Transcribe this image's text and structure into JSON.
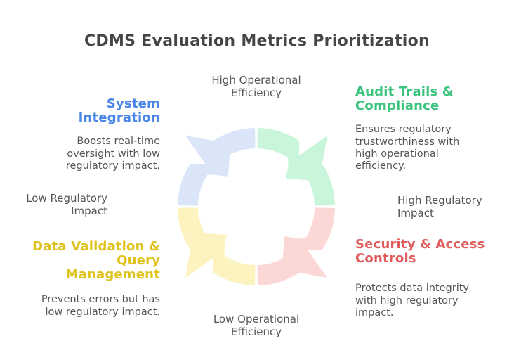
{
  "title": "CDMS Evaluation Metrics Prioritization",
  "colors": {
    "title": "#454545",
    "body_text": "#555555"
  },
  "quadrants": [
    {
      "id": "system-integration",
      "position": "top-left",
      "heading": "System\nIntegration",
      "body": "Boosts real-time\noversight with low\nregulatory impact.",
      "heading_color": "#4a86e8",
      "band_color": "#dbe5f8"
    },
    {
      "id": "audit-trails-compliance",
      "position": "top-right",
      "heading": "Audit Trails &\nCompliance",
      "body": "Ensures regulatory\ntrustworthiness with\nhigh operational\nefficiency.",
      "heading_color": "#3bc47e",
      "band_color": "#c9f6da"
    },
    {
      "id": "data-validation-query-management",
      "position": "bottom-left",
      "heading": "Data Validation &\nQuery\nManagement",
      "body": "Prevents errors but has\nlow regulatory impact.",
      "heading_color": "#dfc31c",
      "band_color": "#fdf3c0"
    },
    {
      "id": "security-access-controls",
      "position": "bottom-right",
      "heading": "Security & Access\nControls",
      "body": "Protects data integrity\nwith high regulatory\nimpact.",
      "heading_color": "#e05c5c",
      "band_color": "#fbd8d5"
    }
  ],
  "axis_labels": {
    "top": "High Operational\nEfficiency",
    "bottom": "Low Operational\nEfficiency",
    "left": "Low Regulatory\nImpact",
    "right": "High Regulatory\nImpact"
  }
}
